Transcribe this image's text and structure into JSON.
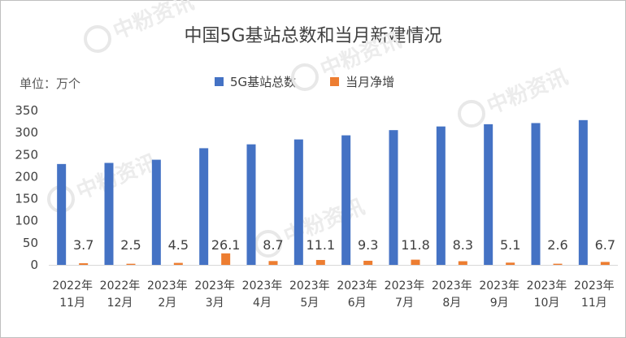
{
  "watermark": "中粉资讯",
  "colors": {
    "total": "#4472C4",
    "increase": "#ED7D31",
    "text": "#404040",
    "grid": "#d9d9d9"
  },
  "chart_data": {
    "type": "bar",
    "title": "中国5G基站总数和当月新建情况",
    "unit_label": "单位：万个",
    "categories": [
      [
        "2022年",
        "11月"
      ],
      [
        "2022年",
        "12月"
      ],
      [
        "2023年",
        "2月"
      ],
      [
        "2023年",
        "3月"
      ],
      [
        "2023年",
        "4月"
      ],
      [
        "2023年",
        "5月"
      ],
      [
        "2023年",
        "6月"
      ],
      [
        "2023年",
        "7月"
      ],
      [
        "2023年",
        "8月"
      ],
      [
        "2023年",
        "9月"
      ],
      [
        "2023年",
        "10月"
      ],
      [
        "2023年",
        "11月"
      ]
    ],
    "series": [
      {
        "name": "5G基站总数",
        "values": [
          228.7,
          231.2,
          238.4,
          264.5,
          273.3,
          284.4,
          293.7,
          305.5,
          313.8,
          318.9,
          321.5,
          328.2
        ]
      },
      {
        "name": "当月净增",
        "values": [
          3.7,
          2.5,
          4.5,
          26.1,
          8.7,
          11.1,
          9.3,
          11.8,
          8.3,
          5.1,
          2.6,
          6.7
        ]
      }
    ],
    "data_labels": [
      "3.7",
      "2.5",
      "4.5",
      "26.1",
      "8.7",
      "11.1",
      "9.3",
      "11.8",
      "8.3",
      "5.1",
      "2.6",
      "6.7"
    ],
    "ylim": [
      0,
      350
    ],
    "yticks": [
      0,
      50,
      100,
      150,
      200,
      250,
      300,
      350
    ],
    "legend_position": "top-center",
    "grid": false
  }
}
